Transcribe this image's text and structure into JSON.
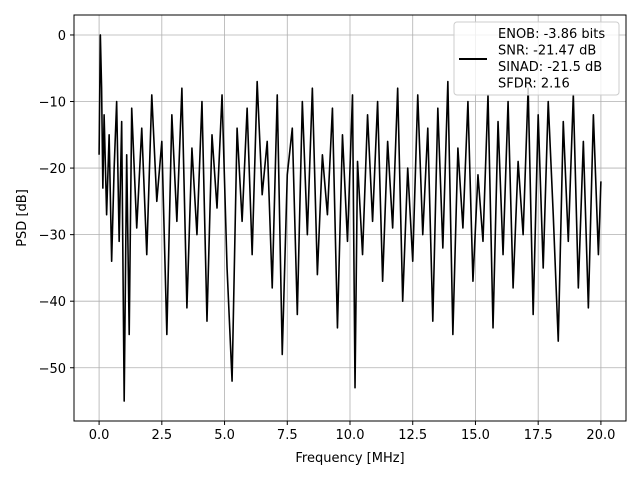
{
  "chart_data": {
    "type": "line",
    "xlabel": "Frequency [MHz]",
    "ylabel": "PSD [dB]",
    "xlim": [
      -1.0,
      21.0
    ],
    "ylim": [
      -58.0,
      3.0
    ],
    "xticks": [
      0.0,
      2.5,
      5.0,
      7.5,
      10.0,
      12.5,
      15.0,
      17.5,
      20.0
    ],
    "xtick_labels": [
      "0.0",
      "2.5",
      "5.0",
      "7.5",
      "10.0",
      "12.5",
      "15.0",
      "17.5",
      "20.0"
    ],
    "yticks": [
      0,
      -10,
      -20,
      -30,
      -40,
      -50
    ],
    "ytick_labels": [
      "0",
      "−10",
      "−20",
      "−30",
      "−40",
      "−50"
    ],
    "grid": true,
    "legend_position": "top-right",
    "line_color": "#000000",
    "series": [
      {
        "legend_lines": [
          "ENOB: -3.86 bits",
          "SNR: -21.47 dB",
          "SINAD: -21.5 dB",
          "SFDR: 2.16"
        ],
        "x": [
          0.0,
          0.05,
          0.1,
          0.15,
          0.2,
          0.3,
          0.4,
          0.5,
          0.6,
          0.7,
          0.8,
          0.9,
          1.0,
          1.1,
          1.2,
          1.3,
          1.5,
          1.7,
          1.9,
          2.1,
          2.3,
          2.5,
          2.7,
          2.9,
          3.1,
          3.3,
          3.5,
          3.7,
          3.9,
          4.1,
          4.3,
          4.5,
          4.7,
          4.9,
          5.1,
          5.3,
          5.5,
          5.7,
          5.9,
          6.1,
          6.3,
          6.5,
          6.7,
          6.9,
          7.1,
          7.3,
          7.5,
          7.7,
          7.9,
          8.1,
          8.3,
          8.5,
          8.7,
          8.9,
          9.1,
          9.3,
          9.5,
          9.7,
          9.9,
          10.1,
          10.2,
          10.3,
          10.5,
          10.7,
          10.9,
          11.1,
          11.3,
          11.5,
          11.7,
          11.9,
          12.1,
          12.3,
          12.5,
          12.7,
          12.9,
          13.1,
          13.3,
          13.5,
          13.7,
          13.9,
          14.1,
          14.3,
          14.5,
          14.7,
          14.9,
          15.1,
          15.3,
          15.5,
          15.7,
          15.9,
          16.1,
          16.3,
          16.5,
          16.7,
          16.9,
          17.1,
          17.3,
          17.5,
          17.7,
          17.9,
          18.1,
          18.3,
          18.5,
          18.7,
          18.9,
          19.1,
          19.3,
          19.5,
          19.7,
          19.9,
          20.0
        ],
        "y": [
          -18,
          0,
          -8,
          -23,
          -12,
          -27,
          -15,
          -34,
          -20,
          -10,
          -31,
          -13,
          -55,
          -18,
          -45,
          -11,
          -29,
          -14,
          -33,
          -9,
          -25,
          -16,
          -45,
          -12,
          -28,
          -8,
          -41,
          -17,
          -30,
          -10,
          -43,
          -15,
          -26,
          -9,
          -35,
          -52,
          -14,
          -28,
          -11,
          -33,
          -7,
          -24,
          -16,
          -38,
          -9,
          -48,
          -21,
          -14,
          -42,
          -10,
          -30,
          -8,
          -36,
          -18,
          -27,
          -11,
          -44,
          -15,
          -31,
          -9,
          -53,
          -19,
          -33,
          -12,
          -28,
          -10,
          -37,
          -16,
          -29,
          -8,
          -40,
          -20,
          -34,
          -9,
          -30,
          -14,
          -43,
          -11,
          -32,
          -7,
          -45,
          -17,
          -29,
          -10,
          -37,
          -21,
          -31,
          -9,
          -44,
          -13,
          -33,
          -10,
          -38,
          -19,
          -30,
          -8,
          -42,
          -12,
          -35,
          -10,
          -27,
          -46,
          -13,
          -31,
          -9,
          -38,
          -16,
          -41,
          -12,
          -33,
          -22
        ]
      }
    ]
  }
}
